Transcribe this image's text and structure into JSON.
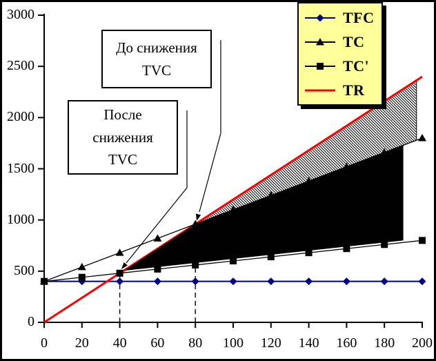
{
  "chart_data": {
    "type": "line",
    "title": "",
    "xlabel": "",
    "ylabel": "",
    "xlim": [
      0,
      200
    ],
    "ylim": [
      0,
      3000
    ],
    "grid": "off",
    "x_ticks": [
      0,
      20,
      40,
      60,
      80,
      100,
      120,
      140,
      160,
      180,
      200
    ],
    "y_ticks": [
      0,
      500,
      1000,
      1500,
      2000,
      2500,
      3000
    ],
    "x": [
      0,
      20,
      40,
      60,
      80,
      100,
      120,
      140,
      160,
      180,
      200
    ],
    "series": [
      {
        "name": "TFC",
        "marker": "diamond",
        "color": "#000080",
        "values": [
          400,
          400,
          400,
          400,
          400,
          400,
          400,
          400,
          400,
          400,
          400
        ]
      },
      {
        "name": "TC",
        "marker": "triangle",
        "color": "#000000",
        "values": [
          400,
          540,
          680,
          820,
          960,
          1100,
          1240,
          1380,
          1520,
          1660,
          1800
        ]
      },
      {
        "name": "TC'",
        "marker": "square",
        "color": "#000000",
        "values": [
          400,
          440,
          480,
          520,
          560,
          600,
          640,
          680,
          720,
          760,
          800
        ]
      },
      {
        "name": "TR",
        "marker": "none",
        "color": "#FF0000",
        "values": [
          0,
          240,
          480,
          720,
          960,
          1200,
          1440,
          1680,
          1920,
          2160,
          2400
        ]
      }
    ],
    "break_even_points": [
      {
        "x": 40,
        "y": 480
      },
      {
        "x": 80,
        "y": 960
      }
    ],
    "regions": [
      {
        "name": "profit-before-tvc-reduction",
        "fill": "hatch",
        "upper": "TR",
        "lower": "TC",
        "x_from": 80,
        "x_to": 197
      },
      {
        "name": "profit-gain-after-tvc-reduction",
        "fill": "solid-black",
        "upper": "TR-then-TC",
        "lower": "above-TC'",
        "x_from": 42,
        "x_to": 190
      }
    ],
    "legend": {
      "position": "top-right",
      "bg": "#FFFF99",
      "border": "#000000"
    }
  },
  "annotations": [
    {
      "lines": [
        "До снижения",
        "TVC"
      ]
    },
    {
      "lines": [
        "После",
        "снижения",
        "TVC"
      ]
    }
  ]
}
